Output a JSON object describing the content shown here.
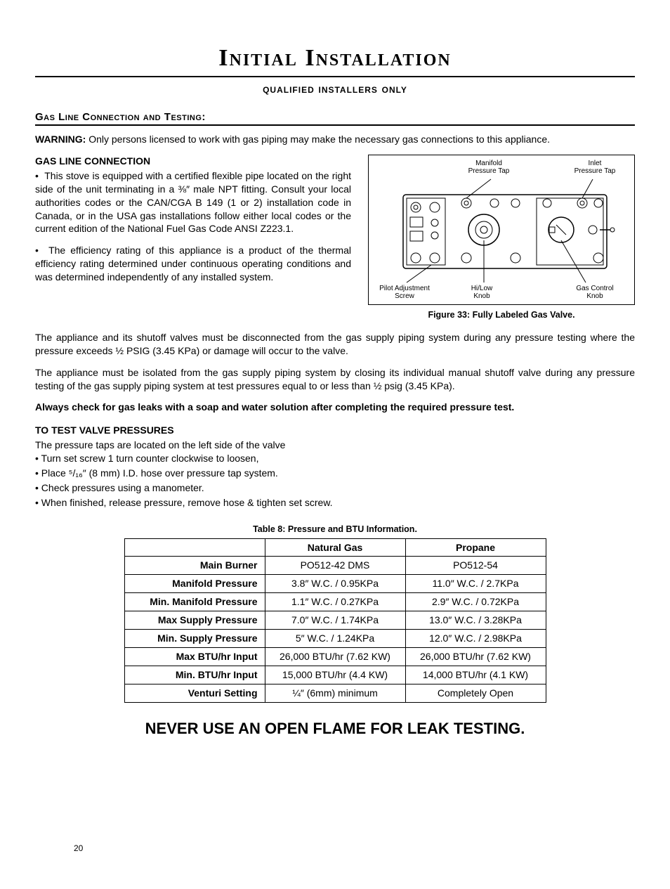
{
  "title": "Initial Installation",
  "subtitle": "qualified installers only",
  "section_head": "Gas Line Connection and Testing:",
  "warning_label": "WARNING:",
  "warning_text": " Only persons licensed to work with gas piping may make the necessary gas connections to this appliance.",
  "gas_conn_heading": "GAS LINE CONNECTION",
  "bullet1": "This stove is equipped with a certified flexible pipe located on the right side of the unit terminating in a ⅜″ male NPT fitting. Consult your local authorities codes or the CAN/CGA B 149 (1 or 2) installation code in Canada, or in the USA gas installations follow either local codes or the current edition of the National Fuel Gas Code ANSI Z223.1.",
  "bullet2": "The efficiency rating of this appliance is a product of the thermal efficiency rating determined under continuous operating conditions and was determined independently of any installed system.",
  "para_disconnect": "The appliance and its shutoff valves must be disconnected from the gas supply piping system during any pressure testing where the pressure exceeds ½ PSIG (3.45 KPa) or damage will occur to the valve.",
  "para_isolate": "The appliance must be isolated from the gas supply piping system by closing its individual manual shutoff valve during any pressure testing of the gas supply piping system at test pressures equal to or less than ½ psig (3.45 KPa).",
  "leak_check": "Always check for gas leaks with a soap and water solution after completing the required pressure test.",
  "test_heading": "TO TEST VALVE PRESSURES",
  "test_intro": "The pressure taps are located on the left side of the valve",
  "test_steps": [
    "Turn set screw 1 turn counter clockwise to loosen,",
    "Place ⁵/₁₆″ (8 mm) I.D. hose over pressure tap system.",
    "Check pressures using a manometer.",
    "When finished, release pressure, remove hose & tighten set screw."
  ],
  "table_caption": "Table 8: Pressure and BTU Information.",
  "table": {
    "columns": [
      "",
      "Natural Gas",
      "Propane"
    ],
    "rows": [
      [
        "Main Burner",
        "PO512-42 DMS",
        "PO512-54"
      ],
      [
        "Manifold Pressure",
        "3.8″ W.C. / 0.95KPa",
        "11.0″ W.C. / 2.7KPa"
      ],
      [
        "Min. Manifold Pressure",
        "1.1″ W.C. / 0.27KPa",
        "2.9″ W.C. / 0.72KPa"
      ],
      [
        "Max Supply Pressure",
        "7.0″ W.C. / 1.74KPa",
        "13.0″ W.C. / 3.28KPa"
      ],
      [
        "Min. Supply Pressure",
        "5″ W.C. / 1.24KPa",
        "12.0″ W.C. / 2.98KPa"
      ],
      [
        "Max BTU/hr Input",
        "26,000 BTU/hr (7.62 KW)",
        "26,000 BTU/hr (7.62 KW)"
      ],
      [
        "Min. BTU/hr Input",
        "15,000 BTU/hr (4.4 KW)",
        "14,000 BTU/hr (4.1 KW)"
      ],
      [
        "Venturi Setting",
        "¼″ (6mm) minimum",
        "Completely Open"
      ]
    ]
  },
  "figure_caption": "Figure 33: Fully Labeled Gas Valve.",
  "diagram_labels": {
    "manifold": "Manifold\nPressure Tap",
    "inlet": "Inlet\nPressure Tap",
    "pilot": "Pilot Adjustment\nScrew",
    "hilow": "Hi/Low\nKnob",
    "gasknob": "Gas Control\nKnob"
  },
  "final_warning": "NEVER USE AN OPEN FLAME FOR LEAK TESTING.",
  "page_number": "20"
}
